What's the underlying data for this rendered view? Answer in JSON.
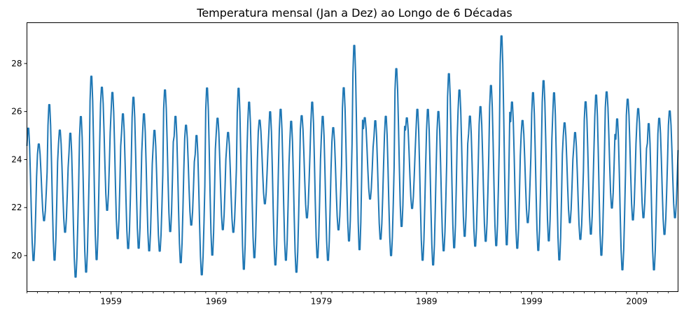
{
  "chart_data": {
    "type": "line",
    "title": "Temperatura mensal (Jan a Dez) ao Longo de 6 Décadas",
    "xlabel": "",
    "ylabel": "",
    "x_start": "1951-01",
    "x_end": "2012-12",
    "xlim": [
      "1951-01",
      "2012-12"
    ],
    "ylim": [
      18.5,
      29.7
    ],
    "x_major_ticks": [
      "1959",
      "1969",
      "1979",
      "1989",
      "1999",
      "2009"
    ],
    "y_ticks": [
      20,
      22,
      24,
      26,
      28
    ],
    "y_tick_labels": [
      "20",
      "22",
      "24",
      "26",
      "28"
    ],
    "grid": false,
    "series": [
      {
        "color": "#1f77b4",
        "yearly_max": [
          25.4,
          24.7,
          26.4,
          25.3,
          25.2,
          25.9,
          27.6,
          27.1,
          26.9,
          26.0,
          26.7,
          26.0,
          25.3,
          27.0,
          25.9,
          25.5,
          25.1,
          27.1,
          25.8,
          25.2,
          27.1,
          26.5,
          25.7,
          26.1,
          26.2,
          25.7,
          25.9,
          26.5,
          25.9,
          25.4,
          27.1,
          28.9,
          25.8,
          25.7,
          25.9,
          27.9,
          25.8,
          26.2,
          26.2,
          26.1,
          27.7,
          27.0,
          25.9,
          26.3,
          27.2,
          29.3,
          26.5,
          25.7,
          26.9,
          27.4,
          26.9,
          25.6,
          25.2,
          26.5,
          26.8,
          26.9,
          25.8,
          26.6,
          26.2,
          25.6,
          25.8,
          26.1
        ],
        "yearly_min": [
          19.7,
          21.4,
          19.7,
          20.9,
          19.0,
          19.2,
          19.7,
          21.8,
          20.6,
          20.2,
          20.2,
          20.1,
          20.1,
          20.9,
          19.6,
          21.2,
          19.1,
          19.9,
          21.0,
          20.9,
          19.3,
          19.8,
          22.1,
          19.5,
          19.7,
          19.2,
          21.5,
          19.8,
          19.7,
          21.0,
          20.5,
          20.1,
          22.3,
          20.6,
          19.9,
          21.1,
          21.9,
          19.7,
          19.5,
          20.1,
          20.2,
          20.7,
          20.3,
          20.5,
          20.3,
          20.3,
          20.2,
          21.3,
          20.1,
          20.5,
          19.7,
          21.3,
          20.6,
          20.8,
          19.9,
          21.9,
          19.3,
          21.4,
          21.5,
          19.3,
          20.8,
          21.5
        ]
      }
    ]
  }
}
